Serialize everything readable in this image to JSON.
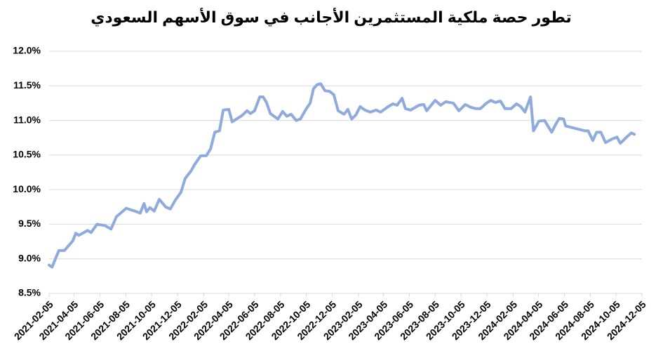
{
  "chart_data": {
    "type": "line",
    "title": "تطور حصة ملكية المستثمرين الأجانب في سوق الأسهم السعودي",
    "x": [
      "2021-02-05",
      "2021-02-12",
      "2021-02-28",
      "2021-03-13",
      "2021-04-02",
      "2021-04-09",
      "2021-04-16",
      "2021-05-07",
      "2021-05-15",
      "2021-05-29",
      "2021-06-17",
      "2021-07-01",
      "2021-07-14",
      "2021-08-06",
      "2021-08-31",
      "2021-09-08",
      "2021-09-17",
      "2021-09-23",
      "2021-10-01",
      "2021-10-11",
      "2021-10-23",
      "2021-11-07",
      "2021-11-18",
      "2021-11-30",
      "2021-12-13",
      "2021-12-23",
      "2022-01-06",
      "2022-01-14",
      "2022-01-29",
      "2022-02-11",
      "2022-02-21",
      "2022-03-03",
      "2022-03-14",
      "2022-03-23",
      "2022-04-05",
      "2022-04-13",
      "2022-04-23",
      "2022-05-06",
      "2022-05-18",
      "2022-05-26",
      "2022-06-05",
      "2022-06-17",
      "2022-06-25",
      "2022-07-03",
      "2022-07-12",
      "2022-07-30",
      "2022-08-10",
      "2022-08-20",
      "2022-08-30",
      "2022-09-11",
      "2022-09-21",
      "2022-10-04",
      "2022-10-14",
      "2022-10-22",
      "2022-10-31",
      "2022-11-08",
      "2022-11-18",
      "2022-11-29",
      "2022-12-09",
      "2022-12-19",
      "2023-01-02",
      "2023-01-11",
      "2023-01-20",
      "2023-01-30",
      "2023-02-09",
      "2023-02-20",
      "2023-03-05",
      "2023-03-19",
      "2023-03-29",
      "2023-04-14",
      "2023-04-27",
      "2023-05-07",
      "2023-05-19",
      "2023-05-27",
      "2023-06-08",
      "2023-06-28",
      "2023-07-09",
      "2023-07-16",
      "2023-08-05",
      "2023-08-18",
      "2023-08-30",
      "2023-09-17",
      "2023-09-30",
      "2023-10-15",
      "2023-10-28",
      "2023-11-09",
      "2023-11-20",
      "2023-12-02",
      "2023-12-14",
      "2023-12-25",
      "2024-01-06",
      "2024-01-17",
      "2024-01-31",
      "2024-02-13",
      "2024-02-23",
      "2024-03-04",
      "2024-03-17",
      "2024-03-24",
      "2024-04-06",
      "2024-04-19",
      "2024-05-06",
      "2024-05-16",
      "2024-05-24",
      "2024-06-03",
      "2024-06-08",
      "2024-07-04",
      "2024-07-23",
      "2024-07-31",
      "2024-08-11",
      "2024-08-20",
      "2024-08-30",
      "2024-09-10",
      "2024-09-25",
      "2024-10-07",
      "2024-10-15",
      "2024-10-30",
      "2024-11-10",
      "2024-11-17"
    ],
    "series": [
      {
        "color": "#8faadc",
        "values": [
          8.91,
          8.88,
          9.12,
          9.12,
          9.26,
          9.37,
          9.34,
          9.41,
          9.38,
          9.5,
          9.48,
          9.43,
          9.61,
          9.73,
          9.68,
          9.66,
          9.8,
          9.68,
          9.74,
          9.69,
          9.86,
          9.75,
          9.72,
          9.85,
          9.96,
          10.16,
          10.27,
          10.36,
          10.49,
          10.49,
          10.59,
          10.83,
          10.85,
          11.15,
          11.16,
          10.98,
          11.02,
          11.07,
          11.14,
          11.1,
          11.14,
          11.34,
          11.34,
          11.26,
          11.1,
          11.02,
          11.13,
          11.06,
          11.09,
          11.0,
          11.02,
          11.16,
          11.25,
          11.46,
          11.52,
          11.53,
          11.43,
          11.42,
          11.37,
          11.14,
          11.09,
          11.16,
          11.02,
          11.08,
          11.2,
          11.15,
          11.12,
          11.15,
          11.12,
          11.19,
          11.24,
          11.22,
          11.32,
          11.17,
          11.15,
          11.22,
          11.23,
          11.14,
          11.29,
          11.22,
          11.27,
          11.25,
          11.14,
          11.23,
          11.19,
          11.17,
          11.17,
          11.24,
          11.29,
          11.26,
          11.28,
          11.17,
          11.17,
          11.24,
          11.2,
          11.12,
          11.34,
          10.85,
          10.99,
          11.0,
          10.83,
          10.95,
          11.03,
          11.02,
          10.92,
          10.88,
          10.85,
          10.85,
          10.71,
          10.83,
          10.83,
          10.68,
          10.73,
          10.76,
          10.67,
          10.76,
          10.82,
          10.8
        ]
      }
    ],
    "xlim": [
      "2021-02-05",
      "2024-12-05"
    ],
    "xticks": [
      "2021-02-05",
      "2021-04-05",
      "2021-06-05",
      "2021-08-05",
      "2021-10-05",
      "2021-12-05",
      "2022-02-05",
      "2022-04-05",
      "2022-06-05",
      "2022-08-05",
      "2022-10-05",
      "2022-12-05",
      "2023-02-05",
      "2023-04-05",
      "2023-06-05",
      "2023-08-05",
      "2023-10-05",
      "2023-12-05",
      "2024-02-05",
      "2024-04-05",
      "2024-06-05",
      "2024-08-05",
      "2024-10-05",
      "2024-12-05"
    ],
    "ylim": [
      8.5,
      12
    ],
    "yticks": [
      {
        "value": 8.5,
        "label": "8.5%"
      },
      {
        "value": 9,
        "label": "9.0%"
      },
      {
        "value": 9.5,
        "label": "9.5%"
      },
      {
        "value": 10,
        "label": "10.0%"
      },
      {
        "value": 10.5,
        "label": "10.5%"
      },
      {
        "value": 11,
        "label": "11.0%"
      },
      {
        "value": 11.5,
        "label": "11.5%"
      },
      {
        "value": 12,
        "label": "12.0%"
      }
    ],
    "grid": true
  }
}
